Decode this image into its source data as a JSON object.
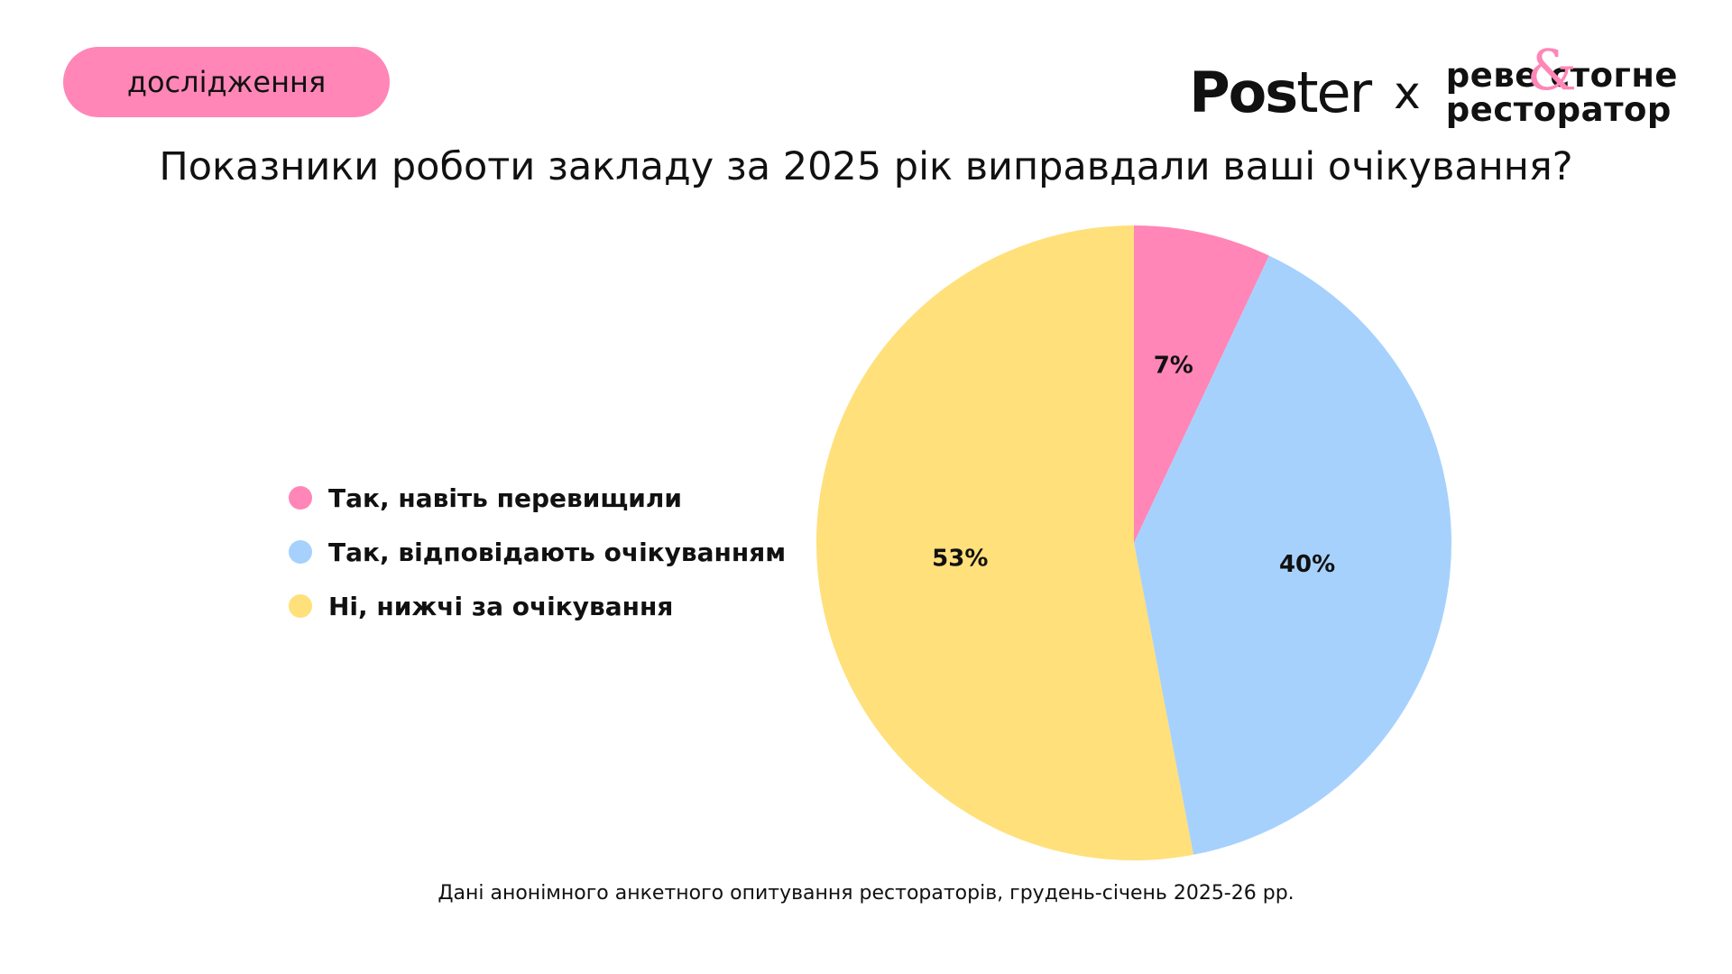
{
  "badge": {
    "label": "дослідження"
  },
  "logos": {
    "poster_bold": "Pos",
    "poster_light": "ter",
    "separator": "x",
    "partner_line1": "реве стогне",
    "partner_line2": "ресторатор",
    "partner_amp": "&"
  },
  "colors": {
    "pink": "#ff86b7",
    "blue": "#a6d1fd",
    "yellow": "#ffe07a"
  },
  "chart_data": {
    "type": "pie",
    "title": "Показники роботи закладу за 2025 рік виправдали ваші очікування?",
    "slices": [
      {
        "label": "Так, навіть перевищили",
        "value": 7,
        "display": "7%",
        "color": "#ff86b7"
      },
      {
        "label": "Так, відповідають очікуванням",
        "value": 40,
        "display": "40%",
        "color": "#a6d1fd"
      },
      {
        "label": "Ні, нижчі за очікування",
        "value": 53,
        "display": "53%",
        "color": "#ffe07a"
      }
    ],
    "start": "12 o'clock",
    "direction": "clockwise",
    "legend_position": "left"
  },
  "footnote": "Дані анонімного анкетного опитування рестораторів, грудень-січень 2025-26 рр."
}
